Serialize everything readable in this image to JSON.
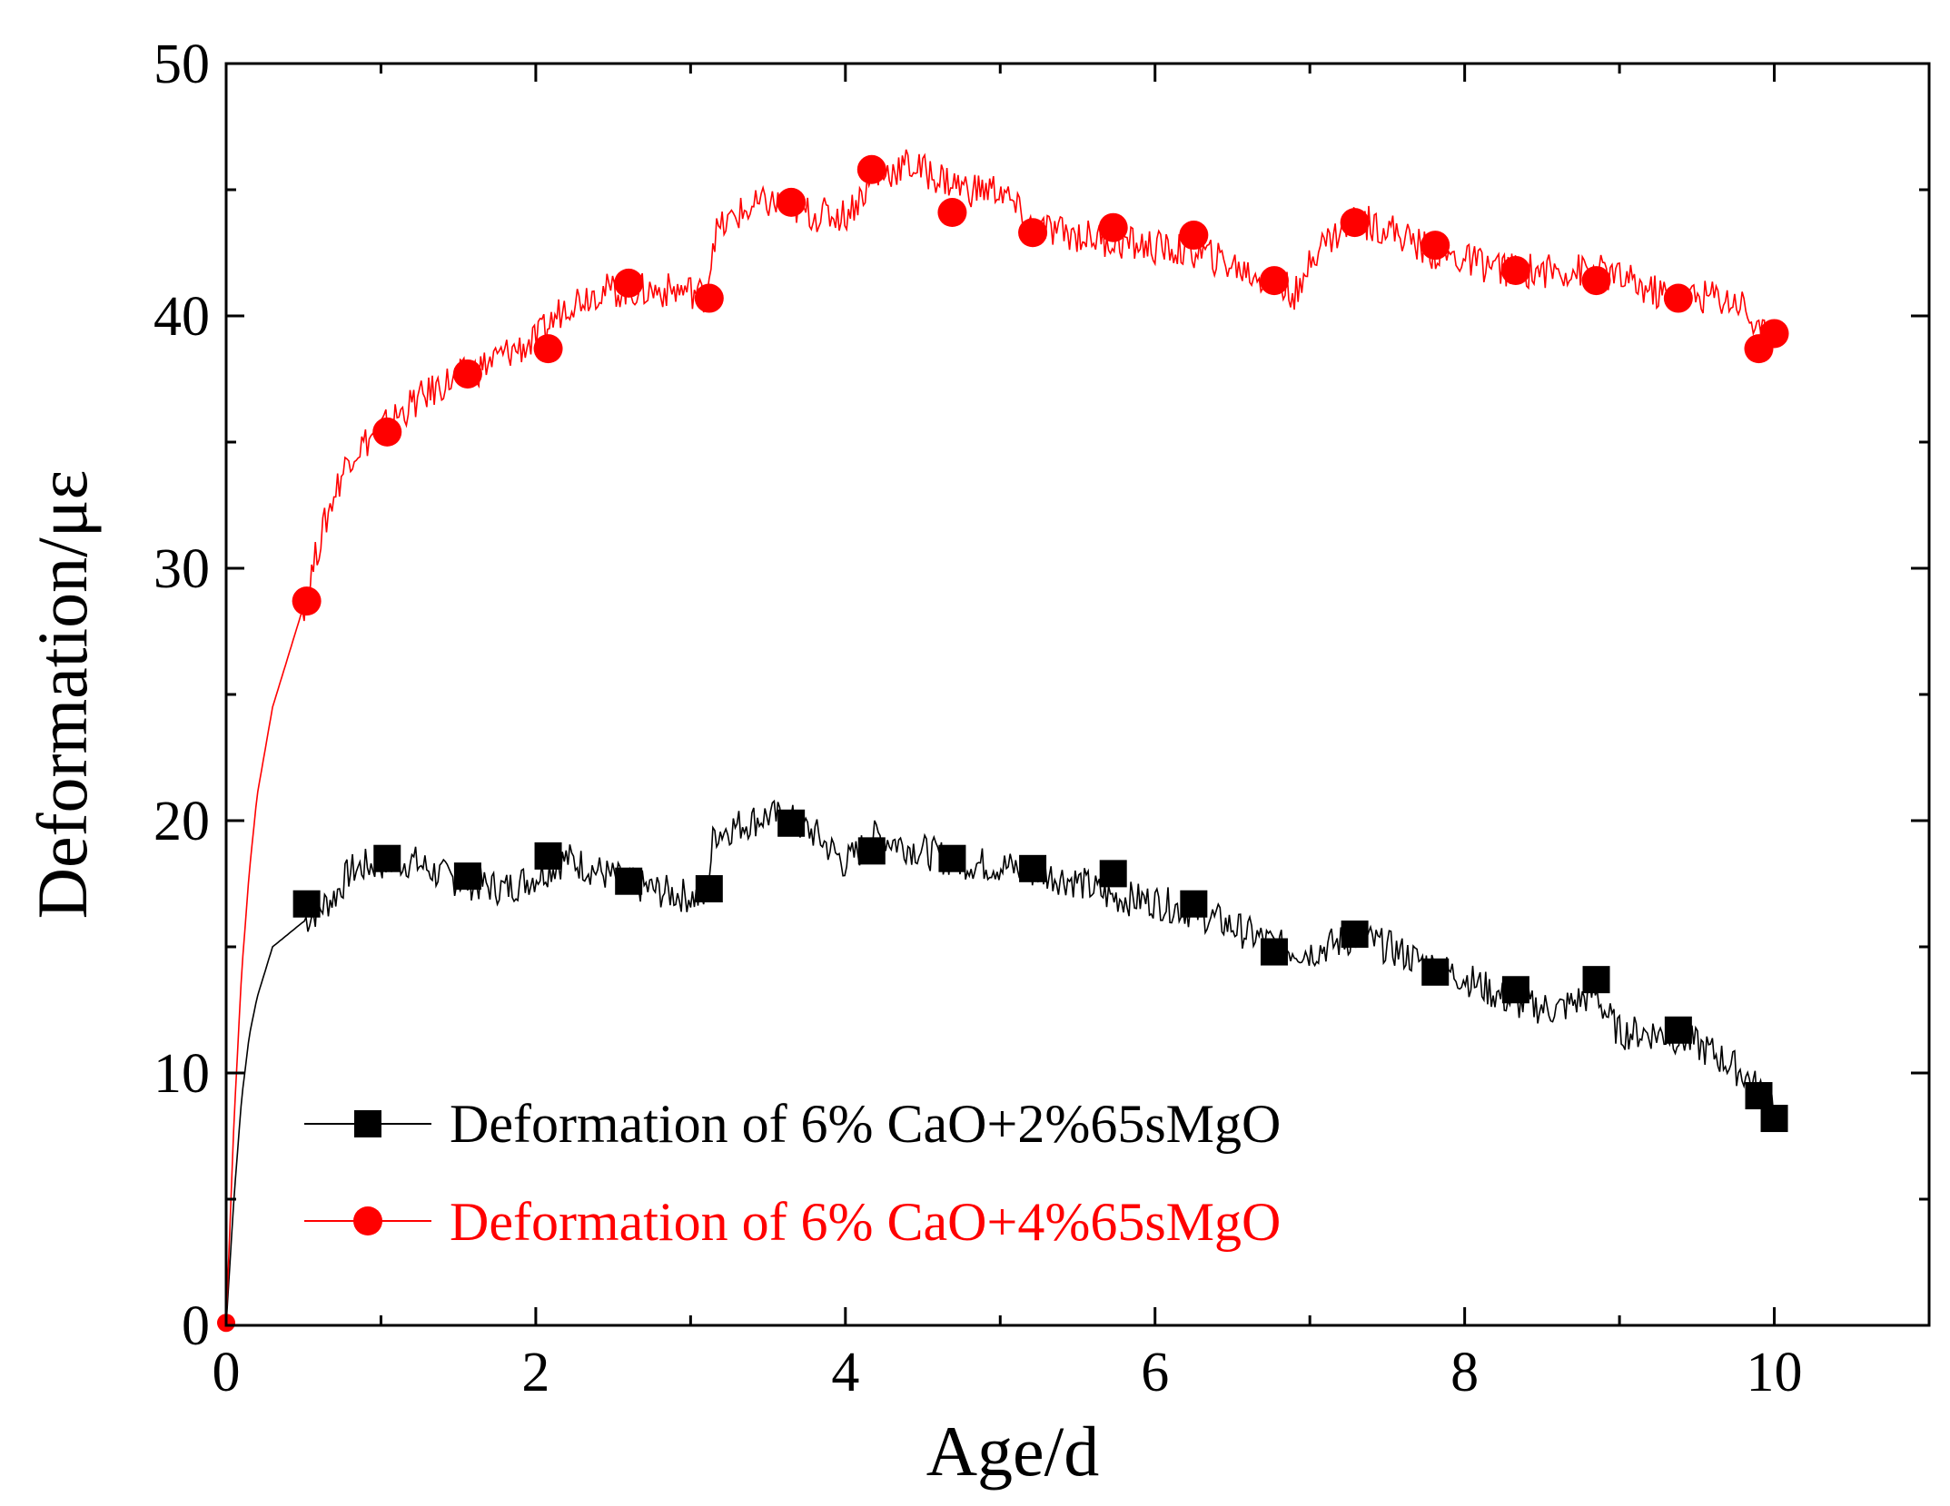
{
  "chart_data": {
    "type": "line",
    "title": "",
    "xlabel": "Age/d",
    "ylabel": "Deformation/με",
    "xlim": [
      0,
      11
    ],
    "ylim": [
      0,
      50
    ],
    "xticks": [
      0,
      2,
      4,
      6,
      8,
      10
    ],
    "xtick_labels": [
      "0",
      "2",
      "4",
      "6",
      "8",
      "10"
    ],
    "yticks": [
      0,
      10,
      20,
      30,
      40,
      50
    ],
    "ytick_labels": [
      "0",
      "10",
      "20",
      "30",
      "40",
      "50"
    ],
    "grid": false,
    "legend_position": "bottom-left",
    "series": [
      {
        "name": "Deformation of 6% CaO+2%65sMgO",
        "color": "#000000",
        "marker": "square",
        "curve_x": [
          0,
          0.05,
          0.1,
          0.15,
          0.2,
          0.3,
          0.4,
          0.5,
          0.6,
          0.7,
          0.8,
          0.9,
          1.0,
          1.2,
          1.4,
          1.6,
          1.8,
          2.0,
          2.2,
          2.4,
          2.6,
          2.8,
          3.0,
          3.1,
          3.15,
          3.3,
          3.5,
          3.65,
          3.8,
          4.0,
          4.2,
          4.5,
          4.7,
          5.0,
          5.2,
          5.5,
          5.7,
          6.0,
          6.3,
          6.5,
          6.8,
          7.0,
          7.3,
          7.5,
          7.8,
          8.0,
          8.3,
          8.6,
          8.85,
          8.9,
          9.0,
          9.2,
          9.4,
          9.6,
          9.8,
          9.9,
          10.0
        ],
        "curve_y": [
          0,
          5,
          9,
          11.5,
          13,
          15,
          15.5,
          16,
          16.5,
          17,
          18,
          18.2,
          18.3,
          18.4,
          17.8,
          17.5,
          17.3,
          17.8,
          18.5,
          18,
          17.5,
          17.2,
          17.0,
          16.8,
          19.5,
          19.8,
          20.2,
          20,
          19.5,
          18.3,
          19.4,
          18.8,
          18.4,
          18.2,
          18.0,
          17.6,
          17.0,
          16.8,
          16.3,
          15.8,
          15.0,
          14.8,
          15.4,
          15.0,
          14.2,
          13.8,
          12.8,
          12.5,
          13.2,
          12.5,
          11.6,
          11.6,
          11.4,
          10.8,
          10.0,
          9.3,
          8.8
        ],
        "marker_x": [
          0.52,
          1.04,
          1.56,
          2.08,
          2.6,
          3.12,
          3.65,
          4.17,
          4.69,
          5.21,
          5.73,
          6.25,
          6.77,
          7.29,
          7.81,
          8.33,
          8.85,
          9.38,
          9.9,
          10.0
        ],
        "marker_y": [
          16.7,
          18.5,
          17.8,
          18.6,
          17.6,
          17.3,
          19.9,
          18.8,
          18.5,
          18.1,
          17.9,
          16.7,
          14.8,
          15.5,
          14.0,
          13.3,
          13.7,
          11.7,
          9.1,
          8.2
        ]
      },
      {
        "name": "Deformation of 6% CaO+4%65sMgO",
        "color": "#ff0000",
        "marker": "circle",
        "curve_x": [
          0,
          0.05,
          0.1,
          0.15,
          0.2,
          0.3,
          0.4,
          0.5,
          0.6,
          0.7,
          0.8,
          0.9,
          1.0,
          1.2,
          1.4,
          1.6,
          1.8,
          2.0,
          2.2,
          2.4,
          2.6,
          2.8,
          3.0,
          3.1,
          3.15,
          3.3,
          3.5,
          3.65,
          3.8,
          4.0,
          4.2,
          4.4,
          4.6,
          4.8,
          5.0,
          5.2,
          5.5,
          5.7,
          6.0,
          6.3,
          6.5,
          6.8,
          6.95,
          7.0,
          7.3,
          7.5,
          7.8,
          8.0,
          8.3,
          8.6,
          8.85,
          9.0,
          9.2,
          9.4,
          9.6,
          9.8,
          9.9,
          10.0
        ],
        "curve_y": [
          0,
          8,
          14,
          18,
          21,
          24.5,
          26.5,
          28.5,
          31,
          33,
          34.5,
          35,
          35.5,
          36.5,
          37.3,
          37.8,
          38.5,
          39,
          40.5,
          41,
          41,
          41,
          41,
          40.8,
          43.2,
          44,
          44.5,
          44.3,
          44,
          44,
          45.5,
          46,
          45.5,
          45,
          45,
          43.5,
          43.2,
          43,
          42.7,
          42.5,
          42,
          41.2,
          40.8,
          42.5,
          43.8,
          43.5,
          42.5,
          42.2,
          41.8,
          41.8,
          41.8,
          41.5,
          41,
          40.7,
          40.8,
          40.5,
          39.2,
          39.5
        ],
        "marker_x": [
          0,
          0.52,
          1.04,
          1.56,
          2.08,
          2.6,
          3.12,
          3.65,
          4.17,
          4.69,
          5.21,
          5.73,
          6.25,
          6.77,
          7.29,
          7.81,
          8.33,
          8.85,
          9.38,
          9.9,
          10.0
        ],
        "marker_y": [
          0.1,
          28.7,
          35.4,
          37.7,
          38.7,
          41.3,
          40.7,
          44.5,
          45.8,
          44.1,
          43.3,
          43.5,
          43.2,
          41.4,
          43.7,
          42.8,
          41.8,
          41.4,
          40.7,
          38.7,
          39.3
        ]
      }
    ]
  }
}
